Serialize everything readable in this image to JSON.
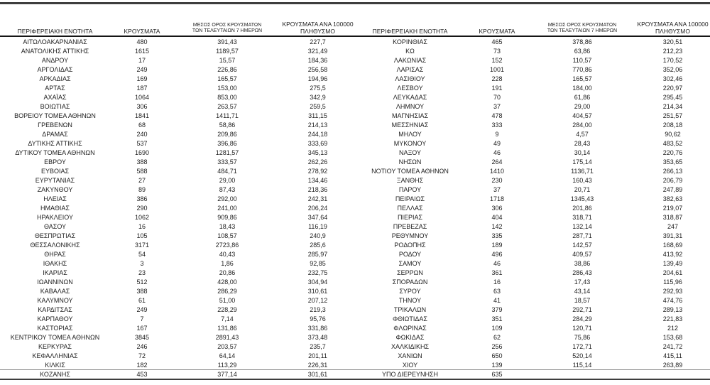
{
  "table": {
    "headers": {
      "region": "ΠΕΡΙΦΕΡΕΙΑΚΗ ΕΝΟΤΗΤΑ",
      "cases": "ΚΡΟΥΣΜΑΤΑ",
      "avg7_line1": "ΜΕΣΟΣ ΟΡΟΣ ΚΡΟΥΣΜΑΤΩΝ",
      "avg7_line2": "ΤΩΝ ΤΕΛΕΥΤΑΙΩΝ 7 ΗΜΕΡΩΝ",
      "per100k_line1": "ΚΡΟΥΣΜΑΤΑ ΑΝΑ 100000",
      "per100k_line2": "ΠΛΗΘΥΣΜΟ"
    },
    "left_rows": [
      {
        "region": "ΑΙΤΩΛΟΑΚΑΡΝΑΝΙΑΣ",
        "cases": "480",
        "avg7": "391,43",
        "per100k": "227,7"
      },
      {
        "region": "ΑΝΑΤΟΛΙΚΗΣ ΑΤΤΙΚΗΣ",
        "cases": "1615",
        "avg7": "1189,57",
        "per100k": "321,49"
      },
      {
        "region": "ΑΝΔΡΟΥ",
        "cases": "17",
        "avg7": "15,57",
        "per100k": "184,36"
      },
      {
        "region": "ΑΡΓΟΛΙΔΑΣ",
        "cases": "249",
        "avg7": "226,86",
        "per100k": "256,58"
      },
      {
        "region": "ΑΡΚΑΔΙΑΣ",
        "cases": "169",
        "avg7": "165,57",
        "per100k": "194,96"
      },
      {
        "region": "ΑΡΤΑΣ",
        "cases": "187",
        "avg7": "153,00",
        "per100k": "275,5"
      },
      {
        "region": "ΑΧΑΪΑΣ",
        "cases": "1064",
        "avg7": "853,00",
        "per100k": "342,9"
      },
      {
        "region": "ΒΟΙΩΤΙΑΣ",
        "cases": "306",
        "avg7": "263,57",
        "per100k": "259,5"
      },
      {
        "region": "ΒΟΡΕΙΟΥ ΤΟΜΕΑ ΑΘΗΝΩΝ",
        "cases": "1841",
        "avg7": "1411,71",
        "per100k": "311,15"
      },
      {
        "region": "ΓΡΕΒΕΝΩΝ",
        "cases": "68",
        "avg7": "58,86",
        "per100k": "214,13"
      },
      {
        "region": "ΔΡΑΜΑΣ",
        "cases": "240",
        "avg7": "209,86",
        "per100k": "244,18"
      },
      {
        "region": "ΔΥΤΙΚΗΣ ΑΤΤΙΚΗΣ",
        "cases": "537",
        "avg7": "396,86",
        "per100k": "333,69"
      },
      {
        "region": "ΔΥΤΙΚΟΥ ΤΟΜΕΑ ΑΘΗΝΩΝ",
        "cases": "1690",
        "avg7": "1281,57",
        "per100k": "345,13"
      },
      {
        "region": "ΕΒΡΟΥ",
        "cases": "388",
        "avg7": "333,57",
        "per100k": "262,26"
      },
      {
        "region": "ΕΥΒΟΙΑΣ",
        "cases": "588",
        "avg7": "484,71",
        "per100k": "278,92"
      },
      {
        "region": "ΕΥΡΥΤΑΝΙΑΣ",
        "cases": "27",
        "avg7": "29,00",
        "per100k": "134,46"
      },
      {
        "region": "ΖΑΚΥΝΘΟΥ",
        "cases": "89",
        "avg7": "87,43",
        "per100k": "218,36"
      },
      {
        "region": "ΗΛΕΙΑΣ",
        "cases": "386",
        "avg7": "292,00",
        "per100k": "242,31"
      },
      {
        "region": "ΗΜΑΘΙΑΣ",
        "cases": "290",
        "avg7": "241,00",
        "per100k": "206,24"
      },
      {
        "region": "ΗΡΑΚΛΕΙΟΥ",
        "cases": "1062",
        "avg7": "909,86",
        "per100k": "347,64"
      },
      {
        "region": "ΘΑΣΟΥ",
        "cases": "16",
        "avg7": "18,43",
        "per100k": "116,19"
      },
      {
        "region": "ΘΕΣΠΡΩΤΙΑΣ",
        "cases": "105",
        "avg7": "108,57",
        "per100k": "240,9"
      },
      {
        "region": "ΘΕΣΣΑΛΟΝΙΚΗΣ",
        "cases": "3171",
        "avg7": "2723,86",
        "per100k": "285,6"
      },
      {
        "region": "ΘΗΡΑΣ",
        "cases": "54",
        "avg7": "40,43",
        "per100k": "285,97"
      },
      {
        "region": "ΙΘΑΚΗΣ",
        "cases": "3",
        "avg7": "1,86",
        "per100k": "92,85"
      },
      {
        "region": "ΙΚΑΡΙΑΣ",
        "cases": "23",
        "avg7": "20,86",
        "per100k": "232,75"
      },
      {
        "region": "ΙΩΑΝΝΙΝΩΝ",
        "cases": "512",
        "avg7": "428,00",
        "per100k": "304,94"
      },
      {
        "region": "ΚΑΒΑΛΑΣ",
        "cases": "388",
        "avg7": "286,29",
        "per100k": "310,61"
      },
      {
        "region": "ΚΑΛΥΜΝΟΥ",
        "cases": "61",
        "avg7": "51,00",
        "per100k": "207,12"
      },
      {
        "region": "ΚΑΡΔΙΤΣΑΣ",
        "cases": "249",
        "avg7": "228,29",
        "per100k": "219,3"
      },
      {
        "region": "ΚΑΡΠΑΘΟΥ",
        "cases": "7",
        "avg7": "7,14",
        "per100k": "95,76"
      },
      {
        "region": "ΚΑΣΤΟΡΙΑΣ",
        "cases": "167",
        "avg7": "131,86",
        "per100k": "331,86"
      },
      {
        "region": "ΚΕΝΤΡΙΚΟΥ ΤΟΜΕΑ ΑΘΗΝΩΝ",
        "cases": "3845",
        "avg7": "2891,43",
        "per100k": "373,48"
      },
      {
        "region": "ΚΕΡΚΥΡΑΣ",
        "cases": "246",
        "avg7": "203,57",
        "per100k": "235,7"
      },
      {
        "region": "ΚΕΦΑΛΛΗΝΙΑΣ",
        "cases": "72",
        "avg7": "64,14",
        "per100k": "201,11"
      },
      {
        "region": "ΚΙΛΚΙΣ",
        "cases": "182",
        "avg7": "113,29",
        "per100k": "226,31"
      },
      {
        "region": "ΚΟΖΑΝΗΣ",
        "cases": "453",
        "avg7": "377,14",
        "per100k": "301,61"
      }
    ],
    "right_rows": [
      {
        "region": "ΚΟΡΙΝΘΙΑΣ",
        "cases": "465",
        "avg7": "378,86",
        "per100k": "320,51"
      },
      {
        "region": "ΚΩ",
        "cases": "73",
        "avg7": "63,86",
        "per100k": "212,23"
      },
      {
        "region": "ΛΑΚΩΝΙΑΣ",
        "cases": "152",
        "avg7": "110,57",
        "per100k": "170,52"
      },
      {
        "region": "ΛΑΡΙΣΑΣ",
        "cases": "1001",
        "avg7": "770,86",
        "per100k": "352,06"
      },
      {
        "region": "ΛΑΣΙΘΙΟΥ",
        "cases": "228",
        "avg7": "165,57",
        "per100k": "302,46"
      },
      {
        "region": "ΛΕΣΒΟΥ",
        "cases": "191",
        "avg7": "184,00",
        "per100k": "220,97"
      },
      {
        "region": "ΛΕΥΚΑΔΑΣ",
        "cases": "70",
        "avg7": "61,86",
        "per100k": "295,45"
      },
      {
        "region": "ΛΗΜΝΟΥ",
        "cases": "37",
        "avg7": "29,00",
        "per100k": "214,34"
      },
      {
        "region": "ΜΑΓΝΗΣΙΑΣ",
        "cases": "478",
        "avg7": "404,57",
        "per100k": "251,57"
      },
      {
        "region": "ΜΕΣΣΗΝΙΑΣ",
        "cases": "333",
        "avg7": "284,00",
        "per100k": "208,18"
      },
      {
        "region": "ΜΗΛΟΥ",
        "cases": "9",
        "avg7": "4,57",
        "per100k": "90,62"
      },
      {
        "region": "ΜΥΚΟΝΟΥ",
        "cases": "49",
        "avg7": "28,43",
        "per100k": "483,52"
      },
      {
        "region": "ΝΑΞΟΥ",
        "cases": "46",
        "avg7": "30,14",
        "per100k": "220,76"
      },
      {
        "region": "ΝΗΣΩΝ",
        "cases": "264",
        "avg7": "175,14",
        "per100k": "353,65"
      },
      {
        "region": "ΝΟΤΙΟΥ ΤΟΜΕΑ ΑΘΗΝΩΝ",
        "cases": "1410",
        "avg7": "1136,71",
        "per100k": "266,13"
      },
      {
        "region": "ΞΑΝΘΗΣ",
        "cases": "230",
        "avg7": "160,43",
        "per100k": "206,79"
      },
      {
        "region": "ΠΑΡΟΥ",
        "cases": "37",
        "avg7": "20,71",
        "per100k": "247,89"
      },
      {
        "region": "ΠΕΙΡΑΙΩΣ",
        "cases": "1718",
        "avg7": "1345,43",
        "per100k": "382,63"
      },
      {
        "region": "ΠΕΛΛΑΣ",
        "cases": "306",
        "avg7": "201,86",
        "per100k": "219,07"
      },
      {
        "region": "ΠΙΕΡΙΑΣ",
        "cases": "404",
        "avg7": "318,71",
        "per100k": "318,87"
      },
      {
        "region": "ΠΡΕΒΕΖΑΣ",
        "cases": "142",
        "avg7": "132,14",
        "per100k": "247"
      },
      {
        "region": "ΡΕΘΥΜΝΟΥ",
        "cases": "335",
        "avg7": "287,71",
        "per100k": "391,31"
      },
      {
        "region": "ΡΟΔΟΠΗΣ",
        "cases": "189",
        "avg7": "142,57",
        "per100k": "168,69"
      },
      {
        "region": "ΡΟΔΟΥ",
        "cases": "496",
        "avg7": "409,57",
        "per100k": "413,92"
      },
      {
        "region": "ΣΑΜΟΥ",
        "cases": "46",
        "avg7": "38,86",
        "per100k": "139,49"
      },
      {
        "region": "ΣΕΡΡΩΝ",
        "cases": "361",
        "avg7": "286,43",
        "per100k": "204,61"
      },
      {
        "region": "ΣΠΟΡΑΔΩΝ",
        "cases": "16",
        "avg7": "17,43",
        "per100k": "115,96"
      },
      {
        "region": "ΣΥΡΟΥ",
        "cases": "63",
        "avg7": "43,14",
        "per100k": "292,93"
      },
      {
        "region": "ΤΗΝΟΥ",
        "cases": "41",
        "avg7": "18,57",
        "per100k": "474,76"
      },
      {
        "region": "ΤΡΙΚΑΛΩΝ",
        "cases": "379",
        "avg7": "292,71",
        "per100k": "289,13"
      },
      {
        "region": "ΦΘΙΩΤΙΔΑΣ",
        "cases": "351",
        "avg7": "284,29",
        "per100k": "221,83"
      },
      {
        "region": "ΦΛΩΡΙΝΑΣ",
        "cases": "109",
        "avg7": "120,71",
        "per100k": "212"
      },
      {
        "region": "ΦΩΚΙΔΑΣ",
        "cases": "62",
        "avg7": "75,86",
        "per100k": "153,68"
      },
      {
        "region": "ΧΑΛΚΙΔΙΚΗΣ",
        "cases": "256",
        "avg7": "172,71",
        "per100k": "241,72"
      },
      {
        "region": "ΧΑΝΙΩΝ",
        "cases": "650",
        "avg7": "520,14",
        "per100k": "415,11"
      },
      {
        "region": "ΧΙΟΥ",
        "cases": "139",
        "avg7": "115,14",
        "per100k": "263,89"
      },
      {
        "region": "ΥΠΟ ΔΙΕΡΕΥΝΗΣΗ",
        "cases": "635",
        "avg7": "",
        "per100k": ""
      }
    ]
  },
  "colors": {
    "text": "#212121",
    "rule_dark": "#3d3d3d",
    "rule_black": "#141414",
    "rule_thin": "#8c8c8c",
    "background": "#ffffff"
  }
}
